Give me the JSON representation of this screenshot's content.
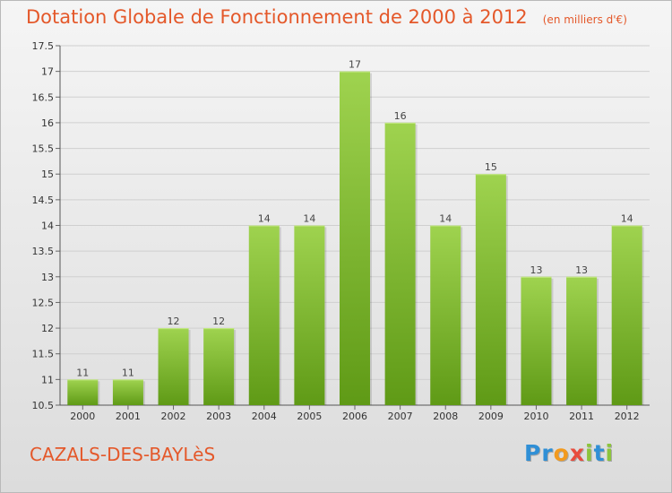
{
  "title": "Dotation Globale de Fonctionnement de 2000 à 2012",
  "subtitle": "(en milliers d'€)",
  "place": "CAZALS-DES-BAYLèS",
  "logo": {
    "letters": [
      "P",
      "r",
      "o",
      "x",
      "i",
      "t",
      "i"
    ],
    "colors": [
      "#2f8fd6",
      "#2f8fd6",
      "#f29a1e",
      "#e84c3d",
      "#8cc43c",
      "#2f8fd6",
      "#8cc43c"
    ]
  },
  "colors": {
    "bar_light": "#9fd34f",
    "bar_dark": "#5f9a16",
    "text": "#e4582a",
    "grid": "#cfcfcf"
  },
  "chart_data": {
    "type": "bar",
    "categories": [
      "2000",
      "2001",
      "2002",
      "2003",
      "2004",
      "2005",
      "2006",
      "2007",
      "2008",
      "2009",
      "2010",
      "2011",
      "2012"
    ],
    "values": [
      11,
      11,
      12,
      12,
      14,
      14,
      17,
      16,
      14,
      15,
      13,
      13,
      14
    ],
    "ylim": [
      10.5,
      17.5
    ],
    "yticks": [
      10.5,
      11,
      11.5,
      12,
      12.5,
      13,
      13.5,
      14,
      14.5,
      15,
      15.5,
      16,
      16.5,
      17,
      17.5
    ],
    "ytick_labels": [
      "10.5",
      "11",
      "11.5",
      "12",
      "12.5",
      "13",
      "13.5",
      "14",
      "14.5",
      "15",
      "15.5",
      "16",
      "16.5",
      "17",
      "17.5"
    ],
    "data_labels": [
      "11",
      "11",
      "12",
      "12",
      "14",
      "14",
      "17",
      "16",
      "14",
      "15",
      "13",
      "13",
      "14"
    ],
    "grid": true,
    "xlabel": "",
    "ylabel": ""
  }
}
